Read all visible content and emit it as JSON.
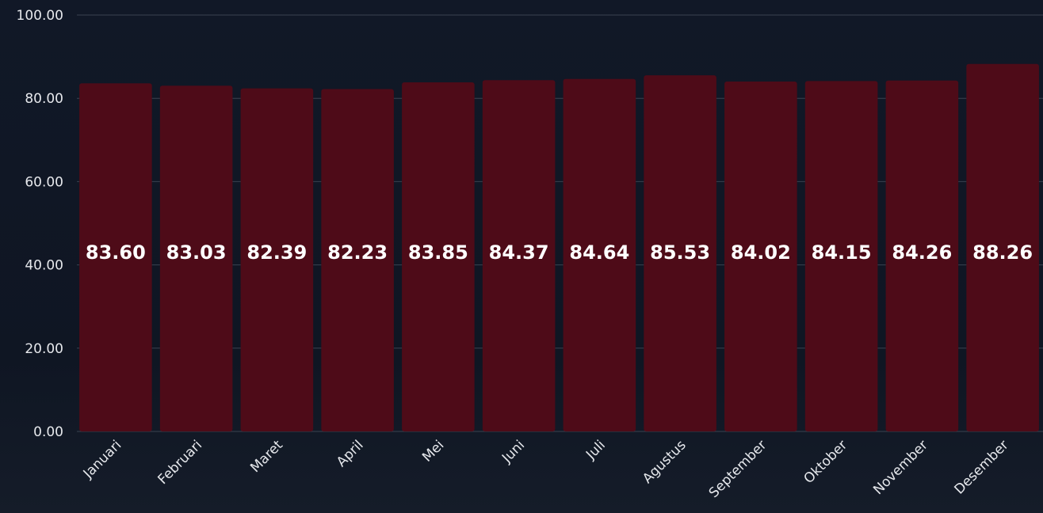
{
  "chart_data": {
    "type": "bar",
    "categories": [
      "Januari",
      "Februari",
      "Maret",
      "April",
      "Mei",
      "Juni",
      "Juli",
      "Agustus",
      "September",
      "Oktober",
      "November",
      "Desember"
    ],
    "values": [
      83.6,
      83.03,
      82.39,
      82.23,
      83.85,
      84.37,
      84.64,
      85.53,
      84.02,
      84.15,
      84.26,
      88.26
    ],
    "value_labels": [
      "83.60",
      "83.03",
      "82.39",
      "82.23",
      "83.85",
      "84.37",
      "84.64",
      "85.53",
      "84.02",
      "84.15",
      "84.26",
      "88.26"
    ],
    "color": "#4e0b18",
    "ylim": [
      0,
      100
    ],
    "yticks": [
      {
        "value": 0,
        "label": "0.00"
      },
      {
        "value": 20,
        "label": "20.00"
      },
      {
        "value": 40,
        "label": "40.00"
      },
      {
        "value": 60,
        "label": "60.00"
      },
      {
        "value": 80,
        "label": "80.00"
      },
      {
        "value": 100,
        "label": "100.00"
      }
    ],
    "grid": true
  }
}
